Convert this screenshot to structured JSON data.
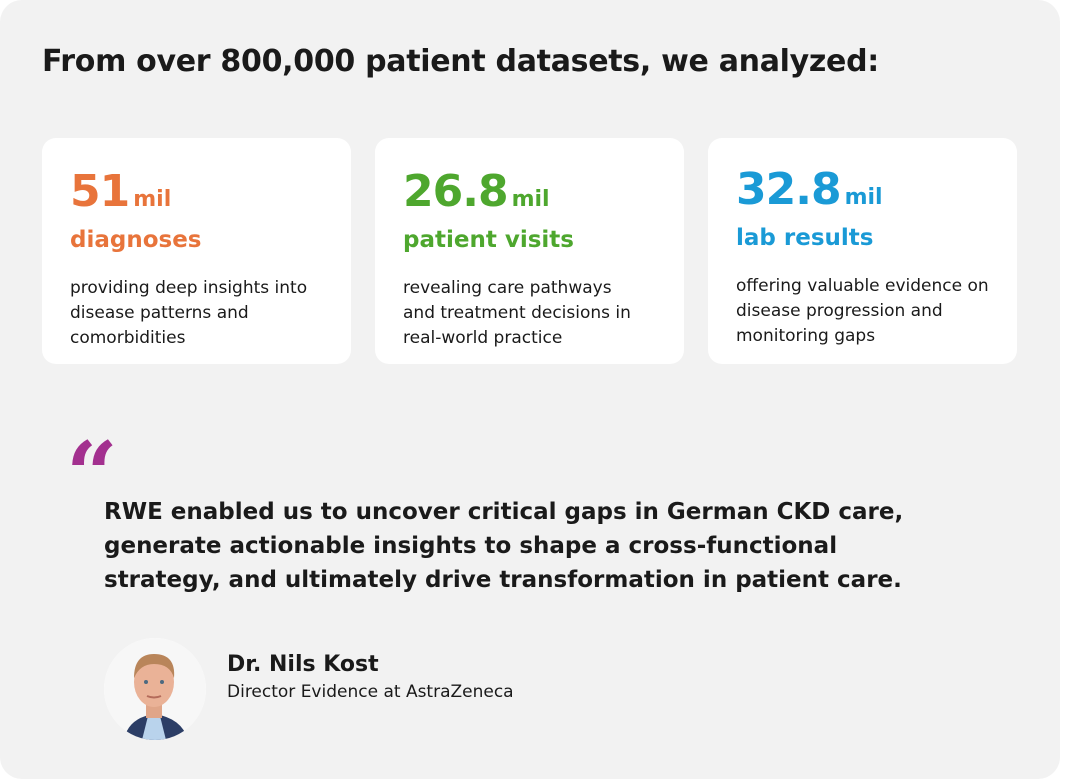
{
  "headline": "From over 800,000 patient datasets, we analyzed:",
  "colors": {
    "orange": "#e8743b",
    "green": "#4ea72e",
    "blue": "#1a9ad6",
    "purple": "#a3308f",
    "background": "#f2f2f2"
  },
  "stats": [
    {
      "number": "51",
      "unit": "mil",
      "label": "diagnoses",
      "description": "providing deep insights into disease patterns and comorbidities"
    },
    {
      "number": "26.8",
      "unit": "mil",
      "label": "patient visits",
      "description": "revealing care pathways and treatment decisions in real-world practice"
    },
    {
      "number": "32.8",
      "unit": "mil",
      "label": "lab results",
      "description": "offering valuable evidence on disease progression and monitoring gaps"
    }
  ],
  "testimonial": {
    "quote_mark": "“",
    "quote": "RWE enabled us to uncover critical gaps in German CKD care, generate actionable insights to shape a cross-functional strategy, and ultimately drive transformation in patient care.",
    "name": "Dr. Nils Kost",
    "role": "Director Evidence at AstraZeneca",
    "avatar_icon": "person-photo"
  }
}
